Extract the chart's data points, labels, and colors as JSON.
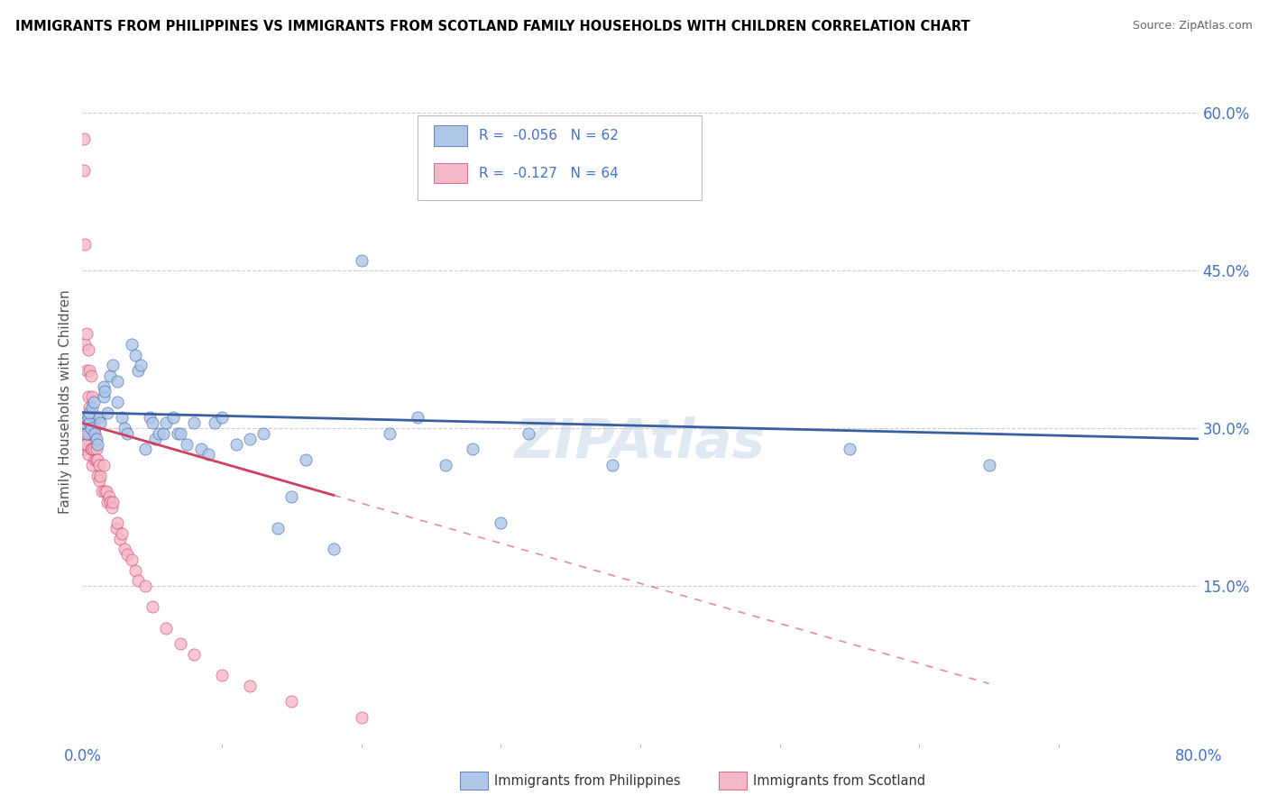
{
  "title": "IMMIGRANTS FROM PHILIPPINES VS IMMIGRANTS FROM SCOTLAND FAMILY HOUSEHOLDS WITH CHILDREN CORRELATION CHART",
  "source": "Source: ZipAtlas.com",
  "ylabel": "Family Households with Children",
  "xlim": [
    0.0,
    0.8
  ],
  "ylim": [
    0.0,
    0.65
  ],
  "x_tick_labels": [
    "0.0%",
    "80.0%"
  ],
  "x_tick_pos": [
    0.0,
    0.8
  ],
  "y_ticks_right": [
    0.15,
    0.3,
    0.45,
    0.6
  ],
  "y_tick_labels_right": [
    "15.0%",
    "30.0%",
    "45.0%",
    "60.0%"
  ],
  "legend_r1": "R =  -0.056",
  "legend_n1": "N = 62",
  "legend_r2": "R =  -0.127",
  "legend_n2": "N = 64",
  "color_blue": "#aec6e8",
  "color_pink": "#f4b8c8",
  "line_blue": "#3a5fa0",
  "line_pink": "#d04060",
  "watermark": "ZIPAtlas",
  "philippines_x": [
    0.001,
    0.002,
    0.003,
    0.004,
    0.005,
    0.005,
    0.006,
    0.007,
    0.008,
    0.009,
    0.01,
    0.011,
    0.012,
    0.013,
    0.015,
    0.015,
    0.016,
    0.018,
    0.02,
    0.022,
    0.025,
    0.025,
    0.028,
    0.03,
    0.032,
    0.035,
    0.038,
    0.04,
    0.042,
    0.045,
    0.048,
    0.05,
    0.052,
    0.055,
    0.058,
    0.06,
    0.065,
    0.068,
    0.07,
    0.075,
    0.08,
    0.085,
    0.09,
    0.095,
    0.1,
    0.11,
    0.12,
    0.13,
    0.14,
    0.15,
    0.16,
    0.18,
    0.2,
    0.22,
    0.24,
    0.26,
    0.28,
    0.3,
    0.32,
    0.38,
    0.55,
    0.65
  ],
  "philippines_y": [
    0.31,
    0.305,
    0.295,
    0.31,
    0.305,
    0.315,
    0.3,
    0.32,
    0.325,
    0.295,
    0.29,
    0.285,
    0.31,
    0.305,
    0.33,
    0.34,
    0.335,
    0.315,
    0.35,
    0.36,
    0.345,
    0.325,
    0.31,
    0.3,
    0.295,
    0.38,
    0.37,
    0.355,
    0.36,
    0.28,
    0.31,
    0.305,
    0.29,
    0.295,
    0.295,
    0.305,
    0.31,
    0.295,
    0.295,
    0.285,
    0.305,
    0.28,
    0.275,
    0.305,
    0.31,
    0.285,
    0.29,
    0.295,
    0.205,
    0.235,
    0.27,
    0.185,
    0.46,
    0.295,
    0.31,
    0.265,
    0.28,
    0.21,
    0.295,
    0.265,
    0.28,
    0.265
  ],
  "scotland_x": [
    0.001,
    0.001,
    0.001,
    0.001,
    0.002,
    0.002,
    0.002,
    0.002,
    0.003,
    0.003,
    0.003,
    0.003,
    0.004,
    0.004,
    0.004,
    0.004,
    0.005,
    0.005,
    0.005,
    0.006,
    0.006,
    0.006,
    0.007,
    0.007,
    0.007,
    0.007,
    0.008,
    0.008,
    0.009,
    0.009,
    0.01,
    0.01,
    0.011,
    0.011,
    0.012,
    0.012,
    0.013,
    0.014,
    0.015,
    0.016,
    0.017,
    0.018,
    0.019,
    0.02,
    0.021,
    0.022,
    0.024,
    0.025,
    0.027,
    0.028,
    0.03,
    0.032,
    0.035,
    0.038,
    0.04,
    0.045,
    0.05,
    0.06,
    0.07,
    0.08,
    0.1,
    0.12,
    0.15,
    0.2
  ],
  "scotland_y": [
    0.575,
    0.545,
    0.29,
    0.28,
    0.475,
    0.38,
    0.305,
    0.285,
    0.39,
    0.355,
    0.295,
    0.285,
    0.375,
    0.33,
    0.295,
    0.275,
    0.355,
    0.32,
    0.295,
    0.35,
    0.31,
    0.28,
    0.33,
    0.295,
    0.28,
    0.265,
    0.31,
    0.28,
    0.3,
    0.27,
    0.28,
    0.27,
    0.27,
    0.255,
    0.265,
    0.25,
    0.255,
    0.24,
    0.265,
    0.24,
    0.24,
    0.23,
    0.235,
    0.23,
    0.225,
    0.23,
    0.205,
    0.21,
    0.195,
    0.2,
    0.185,
    0.18,
    0.175,
    0.165,
    0.155,
    0.15,
    0.13,
    0.11,
    0.095,
    0.085,
    0.065,
    0.055,
    0.04,
    0.025
  ],
  "phil_trend_start_y": 0.315,
  "phil_trend_end_y": 0.29,
  "scot_trend_x_solid_end": 0.18,
  "scot_trend_start_y": 0.305,
  "scot_trend_end_y": 0.0,
  "background_color": "#ffffff",
  "grid_color": "#cccccc"
}
